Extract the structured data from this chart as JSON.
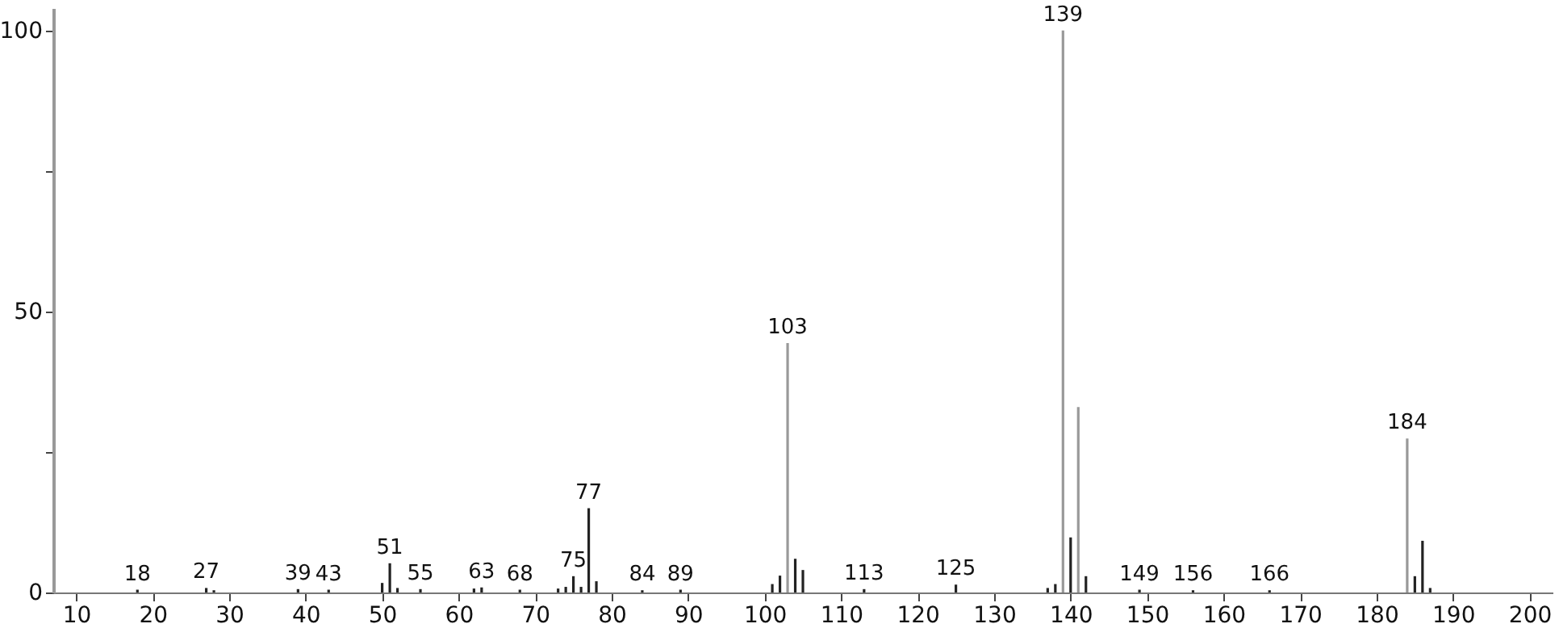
{
  "chart_data": {
    "type": "bar",
    "x": [
      18,
      27,
      28,
      39,
      43,
      50,
      51,
      52,
      55,
      62,
      63,
      68,
      73,
      74,
      75,
      76,
      77,
      78,
      84,
      89,
      101,
      102,
      103,
      104,
      105,
      113,
      125,
      137,
      138,
      139,
      140,
      141,
      142,
      149,
      156,
      166,
      184,
      185,
      186,
      187
    ],
    "values": [
      0.5,
      0.8,
      0.4,
      0.6,
      0.5,
      1.7,
      5.2,
      0.8,
      0.6,
      0.7,
      0.9,
      0.5,
      0.7,
      1,
      2.9,
      1,
      15,
      2,
      0.4,
      0.5,
      1.5,
      3,
      44.4,
      6,
      4,
      0.6,
      1.4,
      0.8,
      1.5,
      100,
      9.8,
      33,
      2.9,
      0.5,
      0.4,
      0.4,
      27.4,
      2.9,
      9.2,
      0.8
    ],
    "annotations": [
      {
        "text": "18",
        "x": 18,
        "y": 0.5
      },
      {
        "text": "27",
        "x": 27,
        "y": 0.8
      },
      {
        "text": "39",
        "x": 39,
        "y": 0.6
      },
      {
        "text": "43",
        "x": 43,
        "y": 0.5
      },
      {
        "text": "51",
        "x": 51,
        "y": 5.2
      },
      {
        "text": "55",
        "x": 55,
        "y": 0.6
      },
      {
        "text": "63",
        "x": 63,
        "y": 0.9
      },
      {
        "text": "68",
        "x": 68,
        "y": 0.5
      },
      {
        "text": "75",
        "x": 75,
        "y": 2.9
      },
      {
        "text": "77",
        "x": 77,
        "y": 15
      },
      {
        "text": "84",
        "x": 84,
        "y": 0.4
      },
      {
        "text": "89",
        "x": 89,
        "y": 0.5
      },
      {
        "text": "103",
        "x": 103,
        "y": 44.4
      },
      {
        "text": "113",
        "x": 113,
        "y": 0.6
      },
      {
        "text": "125",
        "x": 125,
        "y": 1.4
      },
      {
        "text": "139",
        "x": 139,
        "y": 100
      },
      {
        "text": "149",
        "x": 149,
        "y": 0.5
      },
      {
        "text": "156",
        "x": 156,
        "y": 0.4
      },
      {
        "text": "166",
        "x": 166,
        "y": 0.4
      },
      {
        "text": "184",
        "x": 184,
        "y": 27.4
      }
    ],
    "colors": [
      "#222222",
      "#222222",
      "#222222",
      "#222222",
      "#222222",
      "#222222",
      "#222222",
      "#222222",
      "#222222",
      "#222222",
      "#222222",
      "#222222",
      "#222222",
      "#222222",
      "#222222",
      "#222222",
      "#222222",
      "#222222",
      "#222222",
      "#222222",
      "#222222",
      "#222222",
      "#999999",
      "#222222",
      "#222222",
      "#222222",
      "#222222",
      "#222222",
      "#222222",
      "#999999",
      "#222222",
      "#999999",
      "#222222",
      "#222222",
      "#222222",
      "#222222",
      "#999999",
      "#222222",
      "#222222",
      "#222222"
    ],
    "xlim": [
      7,
      203
    ],
    "xticks": [
      10,
      20,
      30,
      40,
      50,
      60,
      70,
      80,
      90,
      100,
      110,
      120,
      130,
      140,
      150,
      160,
      170,
      180,
      190,
      200
    ],
    "ylim": [
      0,
      104
    ],
    "yticks": [
      0,
      {
        "value": 25,
        "label": null
      },
      50,
      {
        "value": 75,
        "label": null
      },
      100
    ],
    "grid": false
  }
}
